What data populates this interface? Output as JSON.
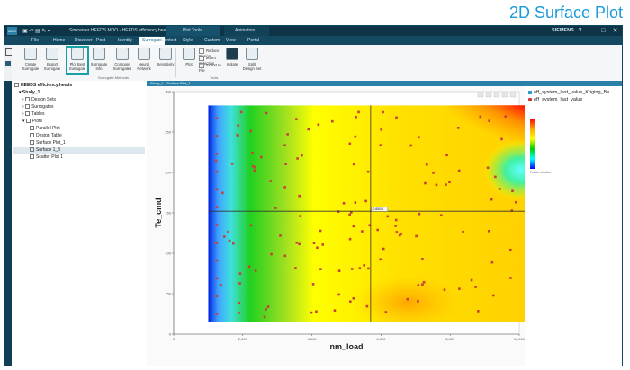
{
  "slide_caption": "2D Surface Plot",
  "titlebar": {
    "title": "Simcenter HEEDS MDO - HEEDS efficiency.heeds/ProjViews",
    "context_tab": "Plot Tools",
    "context_tab_2": "Animation",
    "brand": "SIEMENS",
    "help": "?",
    "min": "—",
    "max": "□",
    "close": "✕"
  },
  "menus": [
    "File",
    "Home",
    "Discover",
    "Post",
    "Identify",
    "Surrogate",
    "Context",
    "Style",
    "Custom",
    "View",
    "Portal"
  ],
  "active_menu": "Surrogate",
  "ribbon": {
    "buttons": [
      {
        "label": "Create Surrogate",
        "icon": "create-surrogate-icon"
      },
      {
        "label": "Export Surrogate",
        "icon": "export-icon"
      },
      {
        "label": "Plot Best Surrogate",
        "icon": "plot-best-surrogate-icon",
        "selected": true
      },
      {
        "label": "Surrogate Info",
        "icon": "info-icon"
      },
      {
        "label": "Compare Surrogates",
        "icon": "compare-icon"
      },
      {
        "label": "Neural Network",
        "icon": "neural-network-icon"
      },
      {
        "label": "Sensitivity",
        "icon": "sensitivity-icon"
      },
      {
        "label": "Plot",
        "icon": "plot-icon"
      },
      {
        "label": "Reduce Design",
        "icon": "reduce-icon"
      },
      {
        "label": "Zoom Selection",
        "icon": "zoom-icon"
      },
      {
        "label": "Export to File",
        "icon": "export-file-icon"
      },
      {
        "label": "Isolate",
        "icon": "isolate-icon"
      },
      {
        "label": "Split Design Set",
        "icon": "split-icon"
      }
    ],
    "groups": [
      "Surrogate Methods",
      "Tools"
    ]
  },
  "tree": {
    "root": "HEEDS efficiency.heeds",
    "study": "Study_1",
    "nodes": [
      "Design Sets",
      "Surrogates",
      "Tables",
      "Plots",
      "Parallel Plot",
      "Design Table",
      "Surface Plot_1",
      "Surface 1_3",
      "Scatter Plot 1"
    ]
  },
  "plot": {
    "tab_label": "Study_1 - Surface Plot_1",
    "crosshair_label": "0.880/0"
  },
  "legend": {
    "entries": [
      {
        "label": "eff_system_last_value_Kriging_Be",
        "color": "#2aa0c8"
      },
      {
        "label": "eff_system_last_value",
        "color": "#d03a3a"
      }
    ],
    "scale_note": "Pareto solution"
  },
  "colors": {
    "accent": "#1a9bd7",
    "titlebar": "#0e3547",
    "menubar": "#134a62",
    "highlight_box": "#17a1a7",
    "points": "#c8403a"
  },
  "chart_data": {
    "type": "heatmap",
    "xlabel": "nm_load",
    "ylabel": "Te_cmd",
    "xlim": [
      0,
      10000
    ],
    "ylim": [
      0,
      300
    ],
    "x_ticks": [
      0,
      2000,
      4000,
      6000,
      8000,
      10000
    ],
    "y_ticks": [
      0,
      50,
      100,
      150,
      200,
      250,
      300
    ],
    "x_tick_labels": [
      "0",
      "2,000",
      "4,000",
      "6,000",
      "8,000",
      "10,000"
    ],
    "y_tick_labels": [
      "0",
      "50",
      "100",
      "150",
      "200",
      "250",
      "300"
    ],
    "crosshair": {
      "x": 5700,
      "y": 152
    },
    "surface_extent": {
      "x": [
        1000,
        10300
      ],
      "y": [
        15,
        283
      ]
    },
    "series": [
      {
        "name": "eff_system_last_value_Kriging_Be",
        "kind": "surface"
      },
      {
        "name": "eff_system_last_value",
        "kind": "points"
      }
    ],
    "colorbar": [
      "#ff0000",
      "#ffa500",
      "#ffff00",
      "#00d000",
      "#00ffff",
      "#0000ff"
    ]
  }
}
